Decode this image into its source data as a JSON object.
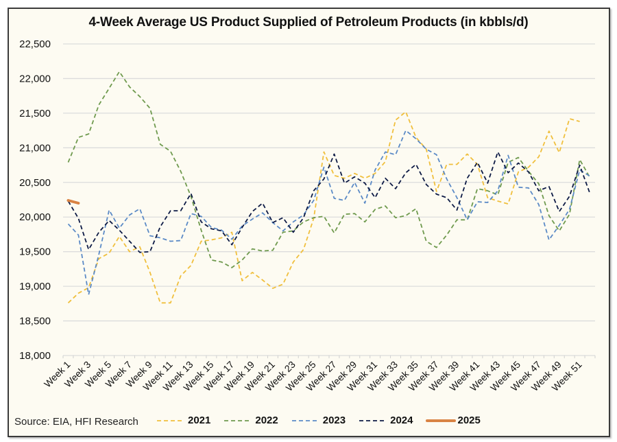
{
  "chart_data": {
    "type": "line",
    "title": "4-Week Average US Product Supplied of Petroleum Products (in kbbls/d)",
    "xlabel": "",
    "ylabel": "",
    "ylim": [
      18000,
      22500
    ],
    "yticks": [
      18000,
      18500,
      19000,
      19500,
      20000,
      20500,
      21000,
      21500,
      22000,
      22500
    ],
    "ytick_labels": [
      "18,000",
      "18,500",
      "19,000",
      "19,500",
      "20,000",
      "20,500",
      "21,000",
      "21,500",
      "22,000",
      "22,500"
    ],
    "grid": true,
    "legend_position": "bottom",
    "categories": [
      "Week 1",
      "Week 2",
      "Week 3",
      "Week 4",
      "Week 5",
      "Week 6",
      "Week 7",
      "Week 8",
      "Week 9",
      "Week 10",
      "Week 11",
      "Week 12",
      "Week 13",
      "Week 14",
      "Week 15",
      "Week 16",
      "Week 17",
      "Week 18",
      "Week 19",
      "Week 20",
      "Week 21",
      "Week 22",
      "Week 23",
      "Week 24",
      "Week 25",
      "Week 26",
      "Week 27",
      "Week 28",
      "Week 29",
      "Week 30",
      "Week 31",
      "Week 32",
      "Week 33",
      "Week 34",
      "Week 35",
      "Week 36",
      "Week 37",
      "Week 38",
      "Week 39",
      "Week 40",
      "Week 41",
      "Week 42",
      "Week 43",
      "Week 44",
      "Week 45",
      "Week 46",
      "Week 47",
      "Week 48",
      "Week 49",
      "Week 50",
      "Week 51",
      "Week 52"
    ],
    "xtick_labels": [
      "Week 1",
      "Week 3",
      "Week 5",
      "Week 7",
      "Week 9",
      "Week 11",
      "Week 13",
      "Week 15",
      "Week 17",
      "Week 19",
      "Week 21",
      "Week 23",
      "Week 25",
      "Week 27",
      "Week 29",
      "Week 31",
      "Week 33",
      "Week 35",
      "Week 37",
      "Week 39",
      "Week 41",
      "Week 43",
      "Week 45",
      "Week 47",
      "Week 49",
      "Week 51"
    ],
    "series": [
      {
        "name": "2021",
        "color": "#f0bf3c",
        "style": "dashed",
        "values": [
          18760,
          18900,
          18980,
          19400,
          19480,
          19720,
          19500,
          19570,
          19200,
          18760,
          18760,
          19150,
          19300,
          19650,
          19670,
          19700,
          19780,
          19080,
          19200,
          19090,
          18970,
          19030,
          19350,
          19530,
          19980,
          20940,
          20600,
          20560,
          20630,
          20560,
          20630,
          20800,
          21400,
          21520,
          21150,
          20980,
          20370,
          20760,
          20760,
          20910,
          20760,
          20280,
          20230,
          20190,
          20650,
          20720,
          20870,
          21240,
          20930,
          21420,
          21380,
          null
        ]
      },
      {
        "name": "2022",
        "color": "#6f9a4e",
        "style": "dashed",
        "values": [
          20790,
          21150,
          21200,
          21620,
          21860,
          22100,
          21880,
          21740,
          21570,
          21050,
          20950,
          20660,
          20300,
          19810,
          19380,
          19350,
          19270,
          19380,
          19540,
          19510,
          19520,
          19780,
          19800,
          19930,
          19990,
          20010,
          19770,
          20040,
          20050,
          19930,
          20110,
          20160,
          19990,
          20020,
          20120,
          19650,
          19560,
          19740,
          19960,
          19960,
          20410,
          20380,
          20320,
          20790,
          20860,
          20660,
          20480,
          20020,
          19800,
          20040,
          20830,
          20570
        ]
      },
      {
        "name": "2023",
        "color": "#5b8ac6",
        "style": "dashed",
        "values": [
          19900,
          19740,
          18880,
          19460,
          20100,
          19840,
          20030,
          20120,
          19730,
          19700,
          19650,
          19660,
          20050,
          20010,
          19850,
          19810,
          19680,
          19870,
          19970,
          20060,
          19920,
          19800,
          19930,
          20030,
          20240,
          20720,
          20270,
          20240,
          20500,
          20200,
          20680,
          20940,
          20900,
          21250,
          21130,
          20980,
          20900,
          20550,
          20280,
          19960,
          20220,
          20210,
          20380,
          20890,
          20430,
          20420,
          20180,
          19670,
          19880,
          20110,
          20680,
          20590
        ]
      },
      {
        "name": "2024",
        "color": "#0d1a45",
        "style": "dashed",
        "values": [
          20230,
          19980,
          19530,
          19780,
          19950,
          19810,
          19650,
          19490,
          19500,
          19860,
          20090,
          20090,
          20340,
          19930,
          19830,
          19800,
          19600,
          19850,
          20080,
          20200,
          19920,
          19990,
          19780,
          19990,
          20380,
          20550,
          20910,
          20490,
          20580,
          20490,
          20280,
          20560,
          20410,
          20640,
          20760,
          20470,
          20330,
          20280,
          20100,
          20560,
          20790,
          20490,
          20940,
          20640,
          20780,
          20650,
          20380,
          20440,
          20080,
          20300,
          20750,
          20340
        ]
      },
      {
        "name": "2025",
        "color": "#d98344",
        "style": "solid",
        "values": [
          20240,
          20200,
          null,
          null,
          null,
          null,
          null,
          null,
          null,
          null,
          null,
          null,
          null,
          null,
          null,
          null,
          null,
          null,
          null,
          null,
          null,
          null,
          null,
          null,
          null,
          null,
          null,
          null,
          null,
          null,
          null,
          null,
          null,
          null,
          null,
          null,
          null,
          null,
          null,
          null,
          null,
          null,
          null,
          null,
          null,
          null,
          null,
          null,
          null,
          null,
          null,
          null
        ]
      }
    ]
  },
  "source_text": "Source: EIA, HFI Research"
}
